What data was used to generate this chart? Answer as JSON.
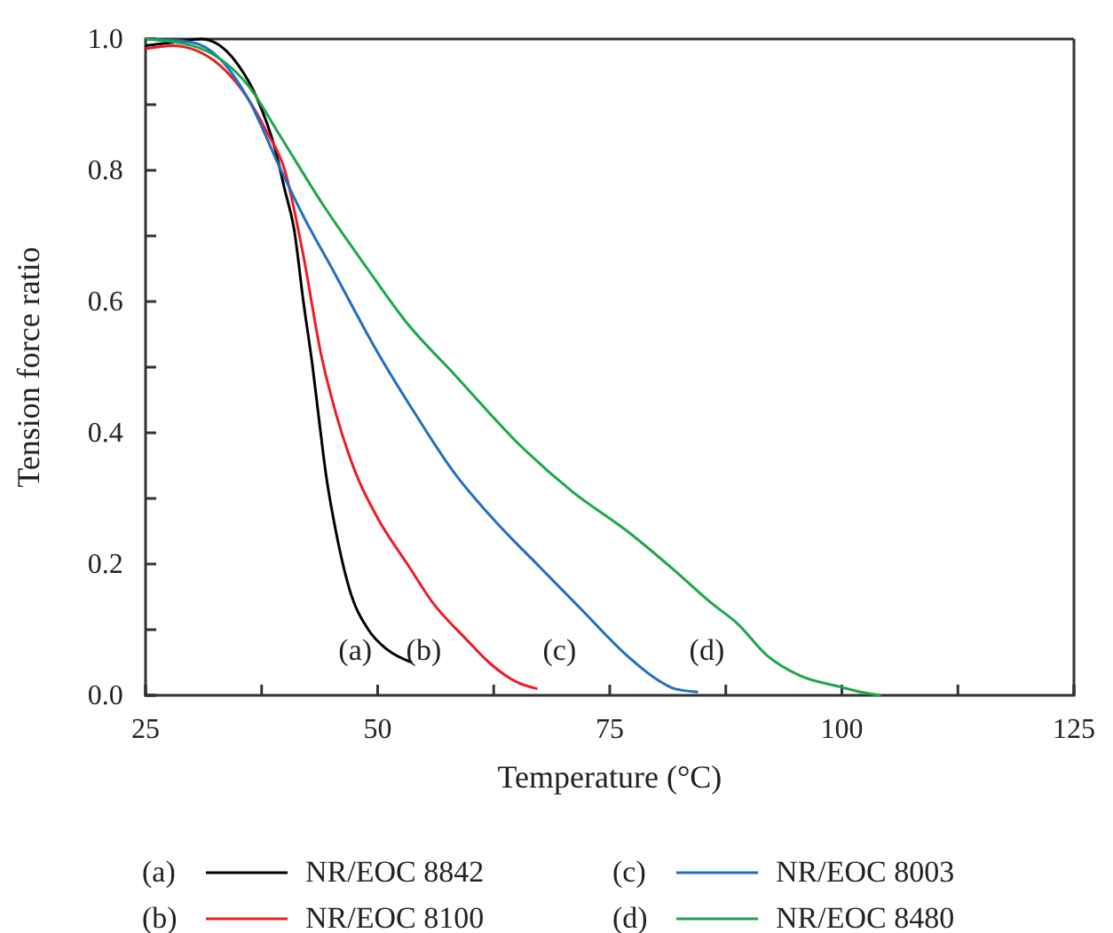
{
  "chart_data": {
    "type": "line",
    "xlabel": "Temperature (°C)",
    "ylabel": "Tension force ratio",
    "xlim": [
      25,
      125
    ],
    "xticks": [
      25,
      {
        "value": 37.5,
        "label": null
      },
      50,
      {
        "value": 62.5,
        "label": null
      },
      75,
      {
        "value": 87.5,
        "label": null
      },
      100,
      {
        "value": 112.5,
        "label": null
      },
      125
    ],
    "ylim": [
      0,
      1
    ],
    "yticks": [
      {
        "value": 0,
        "label": "0.0"
      },
      {
        "value": 0.1,
        "label": null
      },
      0.2,
      {
        "value": 0.3,
        "label": null
      },
      0.4,
      {
        "value": 0.5,
        "label": null
      },
      0.6,
      {
        "value": 0.7,
        "label": null
      },
      0.8,
      {
        "value": 0.9,
        "label": null
      },
      {
        "value": 1,
        "label": "1.0"
      }
    ],
    "grid": false,
    "legend": "bottom",
    "line_style": "solid",
    "marker": "none",
    "series": [
      {
        "name": "NR/EOC 8842",
        "color": "#000000",
        "x": [
          25,
          28,
          31,
          33,
          35,
          37,
          39,
          40,
          41,
          42,
          43,
          43.6,
          44.5,
          45.5,
          47,
          49,
          51,
          53.7
        ],
        "values": [
          0.99,
          0.995,
          1.0,
          0.99,
          0.96,
          0.91,
          0.83,
          0.77,
          0.71,
          0.6,
          0.5,
          0.43,
          0.33,
          0.25,
          0.16,
          0.1,
          0.07,
          0.05
        ]
      },
      {
        "name": "NR/EOC 8100",
        "color": "#ee1c25",
        "x": [
          25,
          28,
          30,
          33,
          36,
          38,
          40,
          42,
          43.9,
          45.5,
          47.6,
          50,
          53.2,
          56,
          59.5,
          62,
          65,
          67.2
        ],
        "values": [
          0.985,
          0.99,
          0.985,
          0.96,
          0.91,
          0.86,
          0.8,
          0.67,
          0.52,
          0.43,
          0.34,
          0.27,
          0.2,
          0.14,
          0.086,
          0.05,
          0.02,
          0.01
        ]
      },
      {
        "name": "NR/EOC 8003",
        "color": "#1f6fc1",
        "x": [
          25,
          30,
          33,
          36,
          39.6,
          42,
          45.1,
          50.1,
          54,
          58.2,
          63,
          67.5,
          72,
          76.9,
          80,
          82,
          84.5
        ],
        "values": [
          1.0,
          0.995,
          0.97,
          0.91,
          0.8,
          0.73,
          0.65,
          0.52,
          0.43,
          0.34,
          0.26,
          0.195,
          0.13,
          0.06,
          0.025,
          0.01,
          0.005
        ]
      },
      {
        "name": "NR/EOC 8480",
        "color": "#1aa84a",
        "x": [
          25,
          30,
          33,
          36,
          39.6,
          44,
          48.9,
          53,
          58.2,
          65.7,
          71,
          76.9,
          82,
          86,
          88.7,
          92,
          95.5,
          99.8,
          102,
          104.2
        ],
        "values": [
          1.0,
          0.99,
          0.97,
          0.93,
          0.85,
          0.75,
          0.65,
          0.57,
          0.49,
          0.376,
          0.31,
          0.25,
          0.19,
          0.14,
          0.11,
          0.06,
          0.03,
          0.013,
          0.005,
          0.0
        ]
      }
    ],
    "annotations": [
      "(a)",
      "(b)",
      "(c)",
      "(d)"
    ]
  }
}
